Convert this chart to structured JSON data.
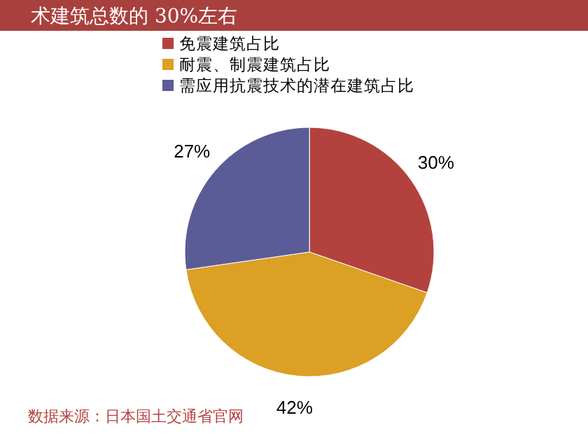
{
  "chart_data": {
    "type": "pie",
    "title": "术建筑总数的 30%左右",
    "categories": [
      "免震建筑占比",
      "耐震、制震建筑占比",
      "需应用抗震技术的潜在建筑占比"
    ],
    "values": [
      30,
      42,
      27
    ],
    "colors": [
      "#b3423f",
      "#dba024",
      "#5b5c97"
    ],
    "value_labels": [
      "30%",
      "42%",
      "27%"
    ],
    "legend": "top",
    "annotations": [
      "数据来源：日本国土交通省官网"
    ]
  }
}
